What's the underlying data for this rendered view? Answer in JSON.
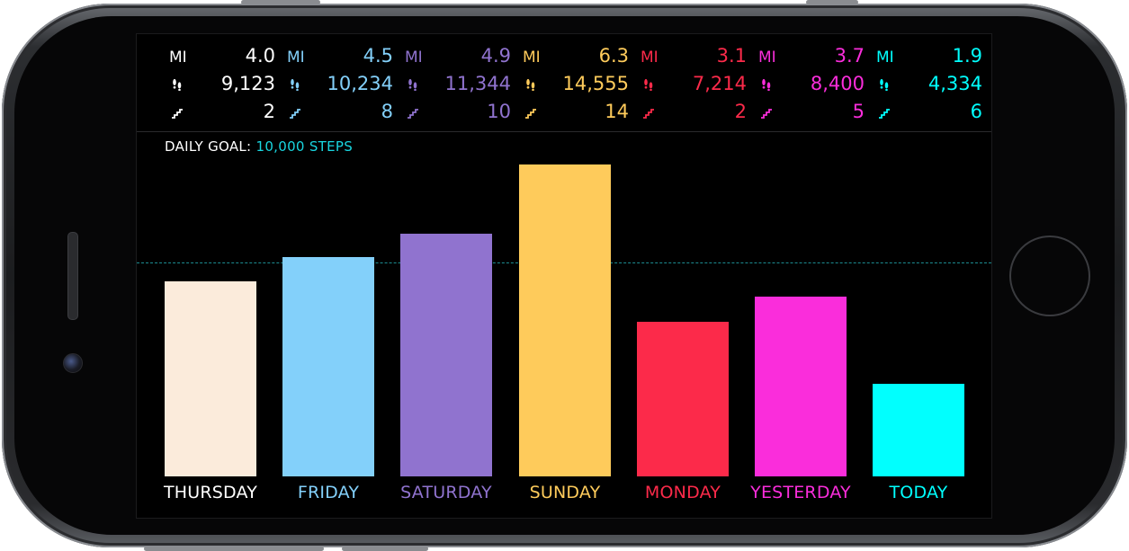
{
  "goal": {
    "label": "DAILY GOAL:",
    "value": "10,000 STEPS"
  },
  "units": {
    "distance": "MI"
  },
  "days": [
    {
      "name": "THURSDAY",
      "miles": "4.0",
      "steps": "9,123",
      "floors": "2",
      "step_count": 9123,
      "color": "#fbebdb"
    },
    {
      "name": "FRIDAY",
      "miles": "4.5",
      "steps": "10,234",
      "floors": "8",
      "step_count": 10234,
      "color": "#83d0fa"
    },
    {
      "name": "SATURDAY",
      "miles": "4.9",
      "steps": "11,344",
      "floors": "10",
      "step_count": 11344,
      "color": "#9073cf"
    },
    {
      "name": "SUNDAY",
      "miles": "6.3",
      "steps": "14,555",
      "floors": "14",
      "step_count": 14555,
      "color": "#fecb5b"
    },
    {
      "name": "MONDAY",
      "miles": "3.1",
      "steps": "7,214",
      "floors": "2",
      "step_count": 7214,
      "color": "#fc2a4a"
    },
    {
      "name": "YESTERDAY",
      "miles": "3.7",
      "steps": "8,400",
      "floors": "5",
      "step_count": 8400,
      "color": "#fa2ddb"
    },
    {
      "name": "TODAY",
      "miles": "1.9",
      "steps": "4,334",
      "floors": "6",
      "step_count": 4334,
      "color": "#01fffe"
    }
  ],
  "goal_steps": 10000,
  "colors": {
    "background": "#000000",
    "goal_accent": "#19d6e0",
    "label_white": "#ffffff"
  },
  "icons": {
    "steps": "footprints-icon",
    "floors": "stairs-icon"
  }
}
